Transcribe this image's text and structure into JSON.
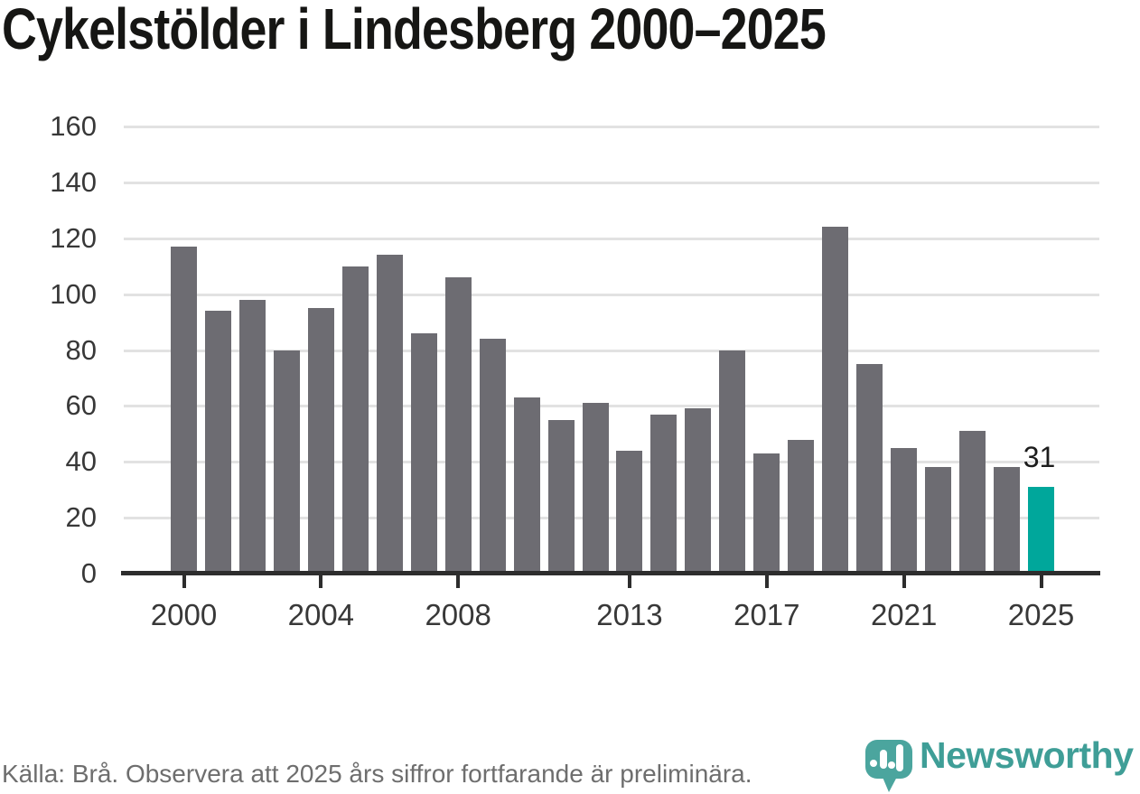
{
  "title": "Cykelstölder i Lindesberg 2000–2025",
  "chart_data": {
    "type": "bar",
    "categories": [
      2000,
      2001,
      2002,
      2003,
      2004,
      2005,
      2006,
      2007,
      2008,
      2009,
      2010,
      2011,
      2012,
      2013,
      2014,
      2015,
      2016,
      2017,
      2018,
      2019,
      2020,
      2021,
      2022,
      2023,
      2024,
      2025
    ],
    "values": [
      117,
      94,
      98,
      80,
      95,
      110,
      114,
      86,
      106,
      84,
      63,
      55,
      61,
      44,
      57,
      59,
      80,
      43,
      48,
      124,
      75,
      45,
      38,
      51,
      38,
      31
    ],
    "title": "Cykelstölder i Lindesberg 2000–2025",
    "xlabel": "",
    "ylabel": "",
    "ylim": [
      0,
      160
    ],
    "yticks": [
      0,
      20,
      40,
      60,
      80,
      100,
      120,
      140,
      160
    ],
    "xticks": [
      2000,
      2004,
      2008,
      2013,
      2017,
      2021,
      2025
    ],
    "grid": "horizontal",
    "legend": "none",
    "highlight_index": 25,
    "highlight_label": "31",
    "bar_color": "#6d6c72",
    "highlight_color": "#00a79b"
  },
  "colors": {
    "gridline": "#e2e2e2",
    "axis": "#2d2d2d",
    "axis_label": "#383838",
    "annotation": "#1c1c1c",
    "title": "#161614",
    "footer_text": "#6e6e6e",
    "brand_teal": "#3f9e97",
    "logo_bubble": "#4ba59e"
  },
  "footer": {
    "source_text": "Källa: Brå. Observera att 2025 års siffror fortfarande är preliminära.",
    "brand": "Newsworthy"
  },
  "icons": {
    "logo": "newsworthy-speech-bubble-chart-icon"
  }
}
